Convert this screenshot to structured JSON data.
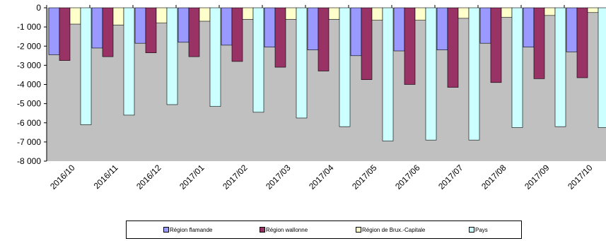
{
  "chart_data": {
    "type": "bar",
    "categories": [
      "2016/10",
      "2016/11",
      "2016/12",
      "2017/01",
      "2017/02",
      "2017/03",
      "2017/04",
      "2017/05",
      "2017/06",
      "2017/07",
      "2017/08",
      "2017/09",
      "2017/10"
    ],
    "series": [
      {
        "name": "Région flamande",
        "color": "#9999ff",
        "values": [
          -2450,
          -2100,
          -1850,
          -1800,
          -1950,
          -2050,
          -2200,
          -2500,
          -2250,
          -2200,
          -1850,
          -2050,
          -2300
        ]
      },
      {
        "name": "Région wallonne",
        "color": "#993366",
        "values": [
          -2750,
          -2550,
          -2350,
          -2550,
          -2800,
          -3100,
          -3300,
          -3750,
          -4000,
          -4150,
          -3900,
          -3700,
          -3650
        ]
      },
      {
        "name": "Région de Brux.-Capitale",
        "color": "#ffffcc",
        "values": [
          -850,
          -900,
          -800,
          -700,
          -600,
          -600,
          -600,
          -650,
          -650,
          -550,
          -500,
          -400,
          -250
        ]
      },
      {
        "name": "Pays",
        "color": "#ccffff",
        "values": [
          -6100,
          -5600,
          -5050,
          -5150,
          -5450,
          -5750,
          -6200,
          -6950,
          -6900,
          -6900,
          -6250,
          -6200,
          -6250
        ]
      }
    ],
    "ylim": [
      -8000,
      0
    ],
    "yticks": [
      "0",
      "-1 000",
      "-2 000",
      "-3 000",
      "-4 000",
      "-5 000",
      "-6 000",
      "-7 000",
      "-8 000"
    ],
    "plot_background": "#c0c0c0",
    "grid": false,
    "legend_position": "bottom"
  }
}
